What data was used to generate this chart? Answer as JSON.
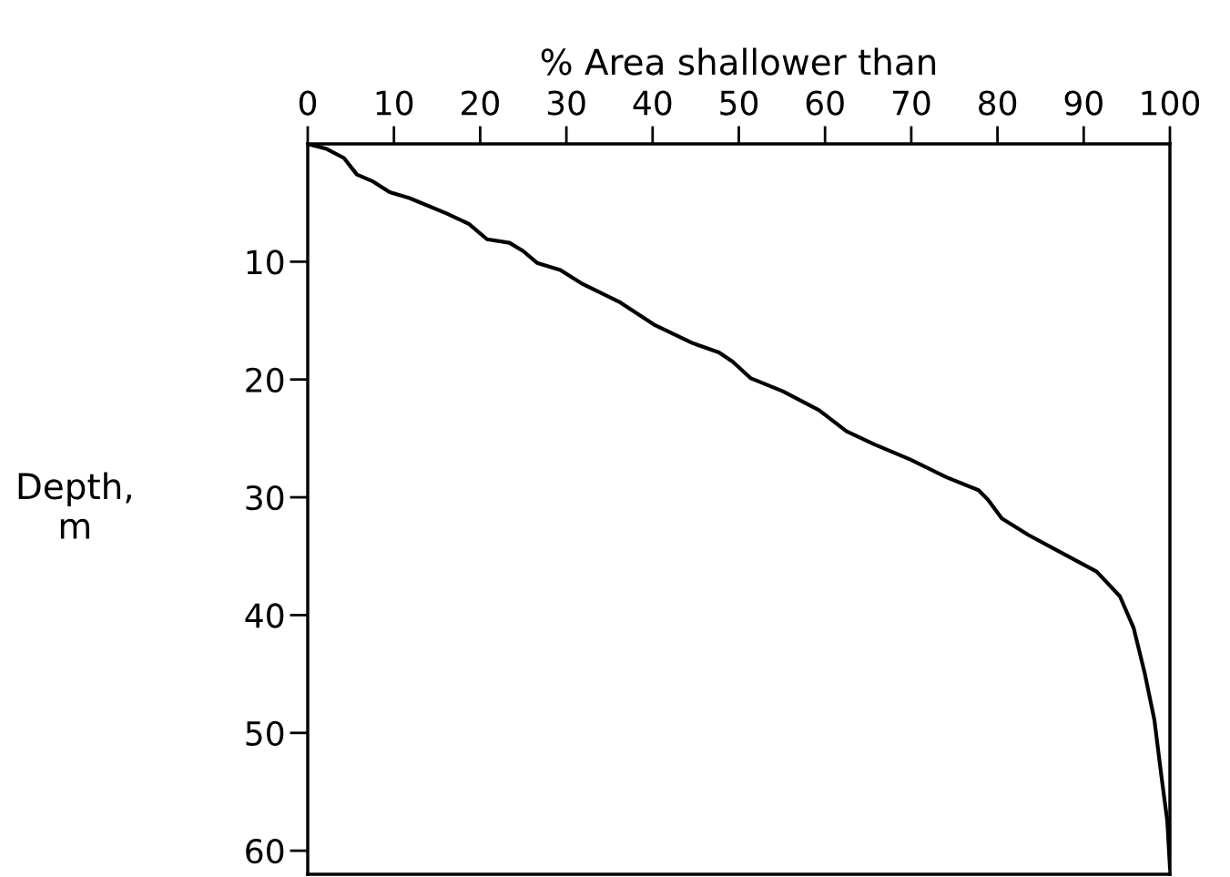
{
  "chart_data": {
    "type": "line",
    "xlabel": "% Area shallower than",
    "ylabel": "Depth,\nm",
    "x": [
      0,
      2.1,
      4.2,
      5.7,
      7.6,
      9.5,
      11.8,
      16.1,
      18.7,
      20.8,
      23.4,
      25,
      26.6,
      29.3,
      31.9,
      36.1,
      40.3,
      44.6,
      47.7,
      49.3,
      51.4,
      55.1,
      59.3,
      62.5,
      65.7,
      69.9,
      74.1,
      77.8,
      78.9,
      80.5,
      83.6,
      87.9,
      91.5,
      94.2,
      95.8,
      97.1,
      98.2,
      99.0,
      99.7,
      100
    ],
    "series": [
      {
        "color": "#000000",
        "values": [
          0,
          0.4,
          1.2,
          2.6,
          3.2,
          4.1,
          4.6,
          5.9,
          6.8,
          8.1,
          8.4,
          9.1,
          10.1,
          10.7,
          11.9,
          13.4,
          15.4,
          16.9,
          17.7,
          18.5,
          19.9,
          21.0,
          22.6,
          24.4,
          25.5,
          26.8,
          28.3,
          29.4,
          30.2,
          31.8,
          33.2,
          34.9,
          36.3,
          38.4,
          41.1,
          45.0,
          48.9,
          53.6,
          57.5,
          61.4
        ]
      }
    ],
    "xlim": [
      0,
      100
    ],
    "xticks": [
      0,
      10,
      20,
      30,
      40,
      50,
      60,
      70,
      80,
      90,
      100
    ],
    "ylim": [
      62,
      0
    ],
    "yticks": [
      10,
      20,
      30,
      40,
      50,
      60
    ],
    "grid": false,
    "legend": false,
    "marker": "none",
    "line_style": "solid"
  }
}
